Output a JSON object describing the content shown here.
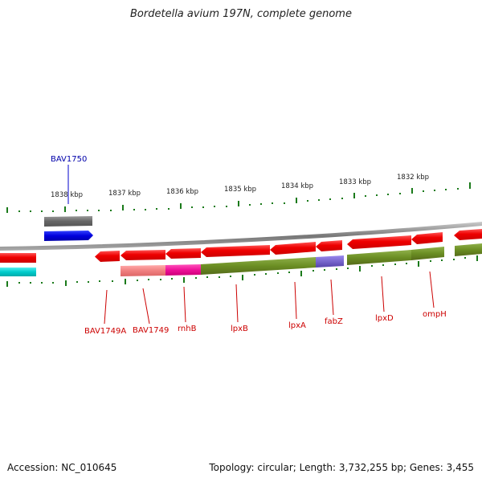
{
  "title": "Bordetella avium 197N, complete genome",
  "accession": "Accession: NC_010645",
  "summary": "Topology: circular; Length: 3,732,255 bp; Genes: 3,455",
  "ticks": [
    "1838 kbp",
    "1837 kbp",
    "1836 kbp",
    "1835 kbp",
    "1834 kbp",
    "1833 kbp",
    "1832 kbp"
  ],
  "genes": [
    {
      "name": "BAV1750",
      "color": "#0000aa"
    },
    {
      "name": "BAV1749A",
      "color": "#cc0000"
    },
    {
      "name": "BAV1749",
      "color": "#cc0000"
    },
    {
      "name": "rnhB",
      "color": "#cc0000"
    },
    {
      "name": "lpxB",
      "color": "#cc0000"
    },
    {
      "name": "lpxA",
      "color": "#cc0000"
    },
    {
      "name": "fabZ",
      "color": "#cc0000"
    },
    {
      "name": "lpxD",
      "color": "#cc0000"
    },
    {
      "name": "ompH",
      "color": "#cc0000"
    }
  ],
  "colors": {
    "backbone": "#8a8a8a",
    "cds_red": "#ee0000",
    "cds_blue": "#0000dd",
    "cds_gray": "#666666",
    "cds_cyan": "#00cccc",
    "cog_olive": "#6b8e23",
    "cog_pink": "#f08080",
    "cog_magenta": "#ee1199",
    "cog_purple": "#7766cc",
    "tick_green": "#1a7a1a"
  }
}
